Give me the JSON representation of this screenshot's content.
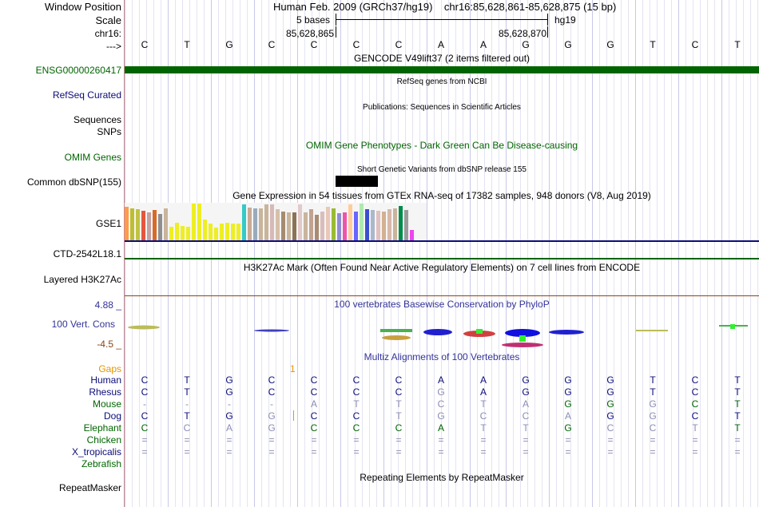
{
  "header": {
    "window_position_label": "Window Position",
    "window_position_value": "Human Feb. 2009 (GRCh37/hg19)    chr16:85,628,861-85,628,875 (15 bp)",
    "scale_label": "Scale",
    "scale_text": "5 bases",
    "scale_assembly": "hg19",
    "chrom_label": "chr16:",
    "pos_left": "85,628,865",
    "pos_right": "85,628,870",
    "arrow_label": "--->"
  },
  "sequence": [
    "C",
    "T",
    "G",
    "C",
    "C",
    "C",
    "C",
    "A",
    "A",
    "G",
    "G",
    "G",
    "T",
    "C",
    "T"
  ],
  "tracks": {
    "gencode": {
      "title": "GENCODE V49lift37 (2 items filtered out)",
      "label": "ENSG00000260417",
      "color": "#006400"
    },
    "refseq": {
      "title": "RefSeq genes from NCBI",
      "label": "RefSeq Curated",
      "color": "#0c0c78"
    },
    "publications": {
      "title": "Publications: Sequences in Scientific Articles",
      "label1": "Sequences",
      "label2": "SNPs"
    },
    "omim": {
      "title": "OMIM Gene Phenotypes - Dark Green Can Be Disease-causing",
      "label": "OMIM Genes",
      "color": "#006400"
    },
    "dbsnp": {
      "title": "Short Genetic Variants from dbSNP release 155",
      "label": "Common dbSNP(155)"
    },
    "gtex": {
      "title": "Gene Expression in 54 tissues from GTEx RNA-seq of 17382 samples, 948 donors (V8, Aug 2019)",
      "label": "GSE1",
      "label2": "CTD-2542L18.1"
    },
    "h3k27ac": {
      "title": "H3K27Ac Mark (Often Found Near Active Regulatory Elements) on 7 cell lines from ENCODE",
      "label": "Layered H3K27Ac"
    },
    "phylop": {
      "title": "100 vertebrates Basewise Conservation by PhyloP",
      "label": "100 Vert. Cons",
      "max": "4.88 _",
      "min": "-4.5 _",
      "color": "#333399"
    },
    "multiz": {
      "title": "Multiz Alignments of 100 Vertebrates",
      "gaps_label": "Gaps",
      "gaps_value": "1"
    },
    "repeatmasker": {
      "title": "Repeating Elements by RepeatMasker",
      "label": "RepeatMasker"
    }
  },
  "gtex_bars": [
    {
      "color": "#ff9b4a",
      "value": 0.92
    },
    {
      "color": "#bdbd33",
      "value": 0.86
    },
    {
      "color": "#c2c244",
      "value": 0.84
    },
    {
      "color": "#e6553c",
      "value": 0.8
    },
    {
      "color": "#c5a0a0",
      "value": 0.76
    },
    {
      "color": "#d86a28",
      "value": 0.82
    },
    {
      "color": "#8f8f8f",
      "value": 0.72
    },
    {
      "color": "#c9b49c",
      "value": 0.86
    },
    {
      "color": "#eeee22",
      "value": 0.38
    },
    {
      "color": "#eeee22",
      "value": 0.48
    },
    {
      "color": "#eeee22",
      "value": 0.4
    },
    {
      "color": "#eeee22",
      "value": 0.38
    },
    {
      "color": "#eeee22",
      "value": 1.0
    },
    {
      "color": "#eeee22",
      "value": 1.0
    },
    {
      "color": "#eeee22",
      "value": 0.56
    },
    {
      "color": "#eeee22",
      "value": 0.46
    },
    {
      "color": "#eeee22",
      "value": 0.34
    },
    {
      "color": "#eeee22",
      "value": 0.45
    },
    {
      "color": "#eeee22",
      "value": 0.47
    },
    {
      "color": "#eeee22",
      "value": 0.45
    },
    {
      "color": "#eeee22",
      "value": 0.45
    },
    {
      "color": "#33c9c9",
      "value": 0.98
    },
    {
      "color": "#c9aa95",
      "value": 0.9
    },
    {
      "color": "#99aabb",
      "value": 0.86
    },
    {
      "color": "#c9b49c",
      "value": 0.88
    },
    {
      "color": "#c9b49c",
      "value": 0.98
    },
    {
      "color": "#d8b9b9",
      "value": 0.97
    },
    {
      "color": "#d6c0a8",
      "value": 0.84
    },
    {
      "color": "#a58c6e",
      "value": 0.78
    },
    {
      "color": "#c9b49c",
      "value": 0.76
    },
    {
      "color": "#8c7256",
      "value": 0.76
    },
    {
      "color": "#e2caca",
      "value": 0.98
    },
    {
      "color": "#c9b49c",
      "value": 0.76
    },
    {
      "color": "#c2a290",
      "value": 0.85
    },
    {
      "color": "#a88c72",
      "value": 0.7
    },
    {
      "color": "#dbbcbc",
      "value": 0.79
    },
    {
      "color": "#e8c8b8",
      "value": 0.92
    },
    {
      "color": "#99bb33",
      "value": 0.88
    },
    {
      "color": "#8e8ed4",
      "value": 0.74
    },
    {
      "color": "#ee55aa",
      "value": 0.76
    },
    {
      "color": "#ffcc99",
      "value": 0.98
    },
    {
      "color": "#6666ff",
      "value": 0.79
    },
    {
      "color": "#b0e8b0",
      "value": 1.0
    },
    {
      "color": "#3a4fd0",
      "value": 0.85
    },
    {
      "color": "#aab8cc",
      "value": 0.82
    },
    {
      "color": "#e0c0c0",
      "value": 0.8
    },
    {
      "color": "#d2b090",
      "value": 0.79
    },
    {
      "color": "#d8b8a8",
      "value": 0.84
    },
    {
      "color": "#c9b49c",
      "value": 0.86
    },
    {
      "color": "#008c4a",
      "value": 0.94
    },
    {
      "color": "#999999",
      "value": 0.82
    },
    {
      "color": "#ee44ee",
      "value": 0.28
    }
  ],
  "alignments": [
    {
      "species": "Human",
      "color": "#0c0c78",
      "bases": [
        "C",
        "T",
        "G",
        "C",
        "C",
        "C",
        "C",
        "A",
        "A",
        "G",
        "G",
        "G",
        "T",
        "C",
        "T"
      ],
      "match": [
        1,
        1,
        1,
        1,
        1,
        1,
        1,
        1,
        1,
        1,
        1,
        1,
        1,
        1,
        1
      ]
    },
    {
      "species": "Rhesus",
      "color": "#0c0c78",
      "bases": [
        "C",
        "T",
        "G",
        "C",
        "C",
        "C",
        "C",
        "G",
        "A",
        "G",
        "G",
        "G",
        "T",
        "C",
        "T"
      ],
      "match": [
        1,
        1,
        1,
        1,
        1,
        1,
        1,
        0,
        1,
        1,
        1,
        1,
        1,
        1,
        1
      ]
    },
    {
      "species": "Mouse",
      "color": "#006400",
      "bases": [
        "-",
        "-",
        "-",
        "-",
        "A",
        "T",
        "T",
        "C",
        "T",
        "A",
        "G",
        "G",
        "G",
        "C",
        "T"
      ],
      "match": [
        0,
        0,
        0,
        0,
        0,
        0,
        0,
        0,
        0,
        0,
        1,
        1,
        0,
        1,
        1
      ]
    },
    {
      "species": "Dog",
      "color": "#0c0c78",
      "bases": [
        "C",
        "T",
        "G",
        "G",
        "C",
        "C",
        "T",
        "G",
        "C",
        "C",
        "A",
        "G",
        "G",
        "C",
        "T"
      ],
      "match": [
        1,
        1,
        1,
        0,
        1,
        1,
        0,
        0,
        0,
        0,
        0,
        1,
        0,
        1,
        1
      ]
    },
    {
      "species": "Elephant",
      "color": "#006400",
      "bases": [
        "C",
        "C",
        "A",
        "G",
        "C",
        "C",
        "C",
        "A",
        "T",
        "T",
        "G",
        "C",
        "C",
        "T",
        "T"
      ],
      "match": [
        1,
        0,
        0,
        0,
        1,
        1,
        1,
        1,
        0,
        0,
        1,
        0,
        0,
        0,
        1
      ]
    },
    {
      "species": "Chicken",
      "color": "#006400",
      "bases": [
        "=",
        "=",
        "=",
        "=",
        "=",
        "=",
        "=",
        "=",
        "=",
        "=",
        "=",
        "=",
        "=",
        "=",
        "="
      ],
      "match": [
        0,
        0,
        0,
        0,
        0,
        0,
        0,
        0,
        0,
        0,
        0,
        0,
        0,
        0,
        0
      ]
    },
    {
      "species": "X_tropicalis",
      "color": "#0c0c78",
      "bases": [
        "=",
        "=",
        "=",
        "=",
        "=",
        "=",
        "=",
        "=",
        "=",
        "=",
        "=",
        "=",
        "=",
        "=",
        "="
      ],
      "match": [
        0,
        0,
        0,
        0,
        0,
        0,
        0,
        0,
        0,
        0,
        0,
        0,
        0,
        0,
        0
      ]
    },
    {
      "species": "Zebrafish",
      "color": "#006400",
      "bases": [
        "",
        "",
        "",
        "",
        "",
        "",
        "",
        "",
        "",
        "",
        "",
        "",
        "",
        "",
        ""
      ],
      "match": [
        0,
        0,
        0,
        0,
        0,
        0,
        0,
        0,
        0,
        0,
        0,
        0,
        0,
        0,
        0
      ]
    }
  ]
}
